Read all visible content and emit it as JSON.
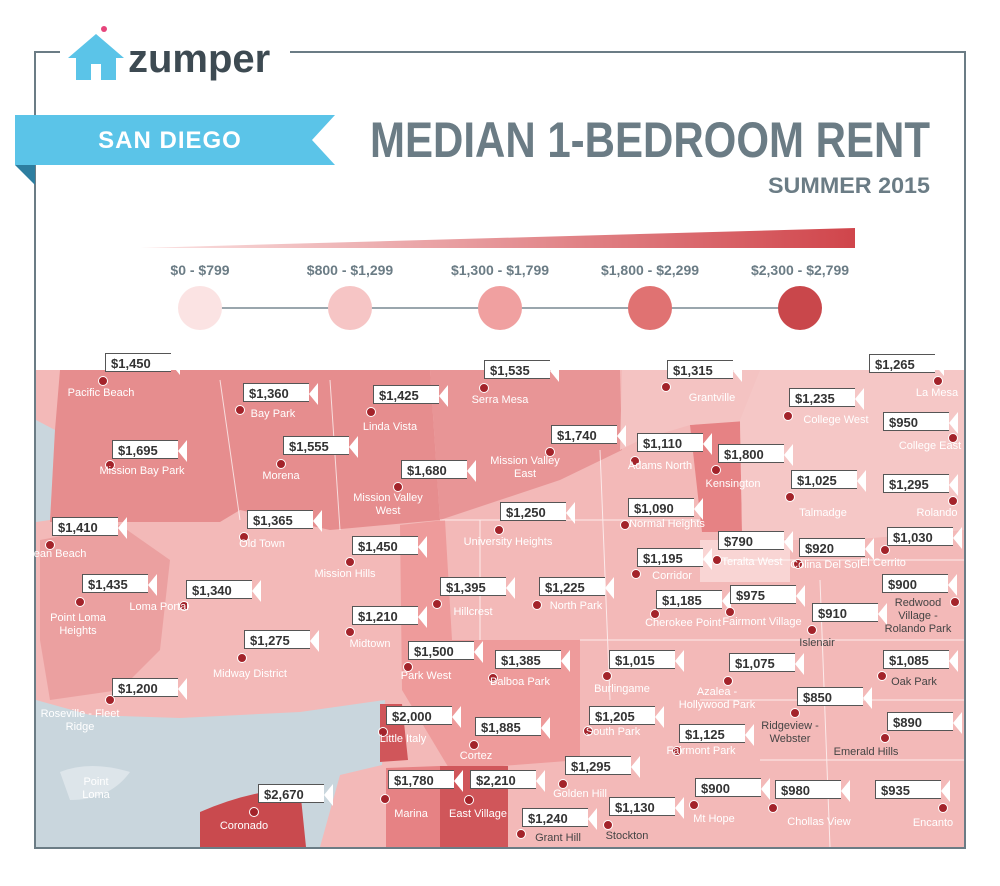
{
  "logo": "zumper",
  "banner": "SAN DIEGO",
  "title": "MEDIAN 1-BEDROOM RENT",
  "subtitle": "SUMMER 2015",
  "legend": [
    {
      "label": "$0 - $799",
      "color": "#fbe3e3"
    },
    {
      "label": "$800 - $1,299",
      "color": "#f6c5c5"
    },
    {
      "label": "$1,300 - $1,799",
      "color": "#f0a0a0"
    },
    {
      "label": "$1,800 - $2,299",
      "color": "#e07272"
    },
    {
      "label": "$2,300 - $2,799",
      "color": "#c9474b"
    }
  ],
  "neighborhoods": [
    {
      "name": "Pacific Beach",
      "rent": "$1,450"
    },
    {
      "name": "Bay Park",
      "rent": "$1,360"
    },
    {
      "name": "Linda Vista",
      "rent": "$1,425"
    },
    {
      "name": "Serra Mesa",
      "rent": "$1,535"
    },
    {
      "name": "Grantville",
      "rent": "$1,315"
    },
    {
      "name": "La Mesa",
      "rent": "$1,265"
    },
    {
      "name": "College West",
      "rent": "$1,235"
    },
    {
      "name": "College East",
      "rent": "$950"
    },
    {
      "name": "Mission Bay Park",
      "rent": "$1,695"
    },
    {
      "name": "Morena",
      "rent": "$1,555"
    },
    {
      "name": "Mission Valley East",
      "rent": "$1,740"
    },
    {
      "name": "Adams North",
      "rent": "$1,110"
    },
    {
      "name": "Kensington",
      "rent": "$1,800"
    },
    {
      "name": "Mission Valley West",
      "rent": "$1,680"
    },
    {
      "name": "Talmadge",
      "rent": "$1,025"
    },
    {
      "name": "Rolando",
      "rent": "$1,295"
    },
    {
      "name": "Ocean Beach",
      "rent": "$1,410"
    },
    {
      "name": "Old Town",
      "rent": "$1,365"
    },
    {
      "name": "University Heights",
      "rent": "$1,250"
    },
    {
      "name": "Normal Heights",
      "rent": "$1,090"
    },
    {
      "name": "El Cerrito",
      "rent": "$1,030"
    },
    {
      "name": "Mission Hills",
      "rent": "$1,450"
    },
    {
      "name": "Corridor",
      "rent": "$1,195"
    },
    {
      "name": "Teralta West",
      "rent": "$790"
    },
    {
      "name": "Colina Del Sol",
      "rent": "$920"
    },
    {
      "name": "Point Loma Heights",
      "rent": "$1,435"
    },
    {
      "name": "Loma Portal",
      "rent": "$1,340"
    },
    {
      "name": "Hillcrest",
      "rent": "$1,395"
    },
    {
      "name": "North Park",
      "rent": "$1,225"
    },
    {
      "name": "Redwood Village - Rolando Park",
      "rent": "$900"
    },
    {
      "name": "Cherokee Point",
      "rent": "$1,185"
    },
    {
      "name": "Fairmont Village",
      "rent": "$975"
    },
    {
      "name": "Islenair",
      "rent": "$910"
    },
    {
      "name": "Midtown",
      "rent": "$1,210"
    },
    {
      "name": "Midway District",
      "rent": "$1,275"
    },
    {
      "name": "Park West",
      "rent": "$1,500"
    },
    {
      "name": "Balboa Park",
      "rent": "$1,385"
    },
    {
      "name": "Burlingame",
      "rent": "$1,015"
    },
    {
      "name": "Azalea - Hollywood Park",
      "rent": "$1,075"
    },
    {
      "name": "Oak Park",
      "rent": "$1,085"
    },
    {
      "name": "Roseville - Fleet Ridge",
      "rent": "$1,200"
    },
    {
      "name": "Ridgeview - Webster",
      "rent": "$850"
    },
    {
      "name": "Little Italy",
      "rent": "$2,000"
    },
    {
      "name": "South Park",
      "rent": "$1,205"
    },
    {
      "name": "Cortez",
      "rent": "$1,885"
    },
    {
      "name": "Emerald Hills",
      "rent": "$890"
    },
    {
      "name": "Fairmont Park",
      "rent": "$1,125"
    },
    {
      "name": "Golden Hill",
      "rent": "$1,295"
    },
    {
      "name": "Coronado",
      "rent": "$2,670"
    },
    {
      "name": "Marina",
      "rent": "$1,780"
    },
    {
      "name": "East Village",
      "rent": "$2,210"
    },
    {
      "name": "Mt Hope",
      "rent": "$900"
    },
    {
      "name": "Chollas View",
      "rent": "$980"
    },
    {
      "name": "Encanto",
      "rent": "$935"
    },
    {
      "name": "Grant Hill",
      "rent": "$1,240"
    },
    {
      "name": "Stockton",
      "rent": "$1,130"
    }
  ],
  "other_labels": [
    "Point Loma"
  ]
}
